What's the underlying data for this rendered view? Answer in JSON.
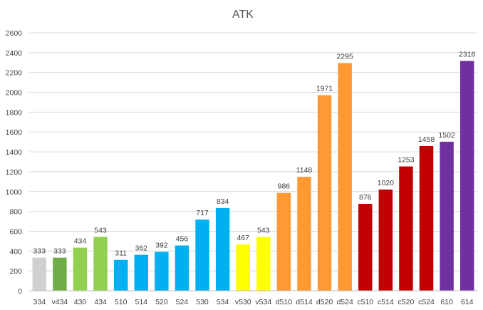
{
  "chart_data": {
    "type": "bar",
    "title": "ATK",
    "xlabel": "",
    "ylabel": "",
    "ylim": [
      0,
      2600
    ],
    "ytick_step": 200,
    "yticks": [
      "0",
      "200",
      "400",
      "600",
      "800",
      "1000",
      "1200",
      "1400",
      "1600",
      "1800",
      "2000",
      "2200",
      "2400",
      "2600"
    ],
    "grid": true,
    "legend": "none",
    "categories": [
      "334",
      "v434",
      "430",
      "434",
      "510",
      "514",
      "520",
      "524",
      "530",
      "534",
      "v530",
      "v534",
      "d510",
      "d514",
      "d520",
      "d524",
      "c510",
      "c514",
      "c520",
      "c524",
      "610",
      "614"
    ],
    "values": [
      333,
      333,
      434,
      543,
      311,
      362,
      392,
      456,
      717,
      834,
      467,
      543,
      986,
      1148,
      1971,
      2295,
      876,
      1020,
      1253,
      1458,
      1502,
      2316
    ],
    "data_labels": [
      "333",
      "333",
      "434",
      "543",
      "311",
      "362",
      "392",
      "456",
      "717",
      "834",
      "467",
      "543",
      "986",
      "1148",
      "1971",
      "2295",
      "876",
      "1020",
      "1253",
      "1458",
      "1502",
      "2316"
    ],
    "colors": [
      "#d0d0d0",
      "#70ad47",
      "#92d050",
      "#92d050",
      "#00b0f0",
      "#00b0f0",
      "#00b0f0",
      "#00b0f0",
      "#00b0f0",
      "#00b0f0",
      "#ffff00",
      "#ffff00",
      "#ff9933",
      "#ff9933",
      "#ff9933",
      "#ff9933",
      "#c00000",
      "#c00000",
      "#c00000",
      "#c00000",
      "#7030a0",
      "#7030a0"
    ]
  }
}
